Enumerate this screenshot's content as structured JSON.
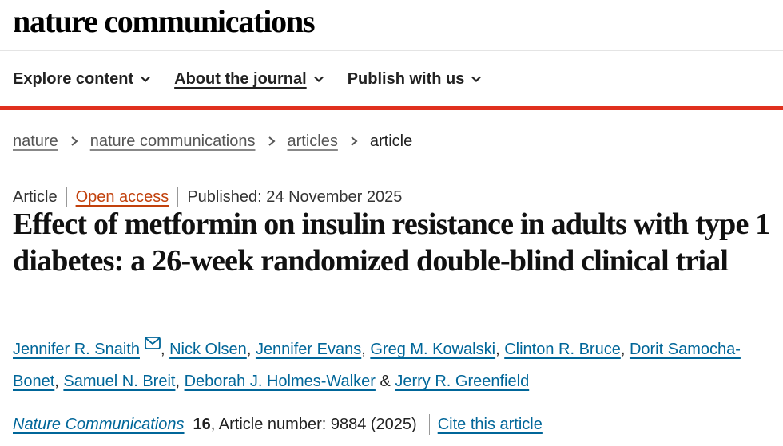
{
  "site": {
    "brand": "nature communications"
  },
  "nav": {
    "items": [
      {
        "label": "Explore content",
        "underlined": false
      },
      {
        "label": "About the journal",
        "underlined": true
      },
      {
        "label": "Publish with us",
        "underlined": false
      }
    ]
  },
  "breadcrumb": {
    "items": [
      "nature",
      "nature communications",
      "articles"
    ],
    "current": "article"
  },
  "article": {
    "type": "Article",
    "access": "Open access",
    "published": "Published: 24 November 2025",
    "title": "Effect of metformin on insulin resistance in adults with type 1 diabetes: a 26-week randomized double-blind clinical trial",
    "authors": [
      "Jennifer R. Snaith",
      "Nick Olsen",
      "Jennifer Evans",
      "Greg M. Kowalski",
      "Clinton R. Bruce",
      "Dorit Samocha-Bonet",
      "Samuel N. Breit",
      "Deborah J. Holmes-Walker",
      "Jerry R. Greenfield"
    ],
    "author_separator": ", ",
    "author_last_separator": " & ",
    "corresponding_icon": "mail-icon"
  },
  "citation": {
    "journal": "Nature Communications",
    "volume": "16",
    "article_number": ", Article number: 9884 (2025)",
    "cite_label": "Cite this article"
  },
  "colors": {
    "accent_red": "#e0301e",
    "link_blue": "#006699",
    "open_access_orange": "#c2410c"
  }
}
